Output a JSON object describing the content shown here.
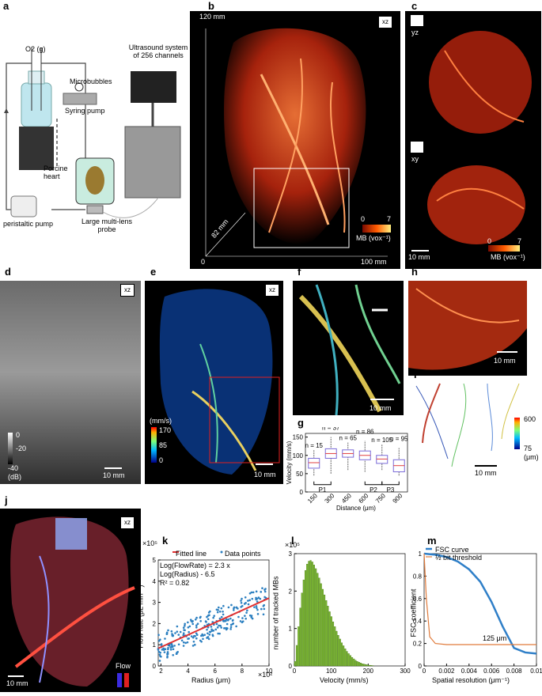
{
  "panels": {
    "a": {
      "label": "a",
      "o2": "O2 (g)",
      "microbubbles": "Microbubbles",
      "syringe": "Syring pump",
      "us": "Ultrasound system of 256 channels",
      "porcine": "Porcine heart",
      "peristaltic": "peristaltic pump",
      "probe": "Large multi-lens probe"
    },
    "b": {
      "label": "b",
      "y": "120 mm",
      "z": "82 mm",
      "x": "100 mm",
      "origin": "0",
      "view": "xz",
      "cbar_min": "0",
      "cbar_max": "7",
      "cbar_unit": "MB (vox⁻¹)"
    },
    "c": {
      "label": "c",
      "view1": "yz",
      "view2": "xy",
      "scale": "10 mm",
      "cbar_min": "0",
      "cbar_max": "7",
      "cbar_unit": "MB (vox⁻¹)"
    },
    "d": {
      "label": "d",
      "view": "xz",
      "c0": "0",
      "c1": "-20",
      "c2": "-40",
      "unit": "(dB)",
      "scale": "10 mm"
    },
    "e": {
      "label": "e",
      "view": "xz",
      "unit": "(mm/s)",
      "c0": "170",
      "c1": "85",
      "c2": "0",
      "scale": "10 mm"
    },
    "f": {
      "label": "f",
      "scale": "10 mm"
    },
    "g": {
      "label": "g",
      "ylabel": "Velocity (mm/s)",
      "xlabel": "Distance (μm)",
      "p1": "P1",
      "p2": "P2",
      "p3": "P3"
    },
    "h": {
      "label": "h",
      "scale": "10 mm"
    },
    "i": {
      "label": "i",
      "cmax": "600",
      "cmin": "75",
      "unit": "(μm)",
      "scale": "10 mm"
    },
    "j": {
      "label": "j",
      "view": "xz",
      "flow": "Flow",
      "scale": "10 mm"
    },
    "k": {
      "label": "k",
      "legend1": "Fitted line",
      "legend2": "Data points",
      "eq1": "Log(FlowRate) = 2.3 x",
      "eq2": "Log(Radius) - 6.5",
      "r2": "R² = 0.82",
      "ylabel": "Flow rate (μL min⁻¹)",
      "xlabel": "Radius (μm)",
      "yexp": "×10⁵",
      "xexp": "×10²"
    },
    "l": {
      "label": "l",
      "ylabel": "number of tracked MBs",
      "xlabel": "Velocity (mm/s)",
      "yexp": "×10⁵"
    },
    "m": {
      "label": "m",
      "legend1": "FSC curve",
      "legend2": "½ bit threshold",
      "ylabel": "FSC coefficient",
      "xlabel": "Spatial resolution (μm⁻¹)",
      "annot": "125 μm"
    }
  },
  "chart_data": [
    {
      "id": "g",
      "type": "box",
      "categories": [
        "150",
        "300",
        "450",
        "600",
        "750",
        "900"
      ],
      "n_labels": [
        "n = 15",
        "n = 37",
        "n = 65",
        "n = 86",
        "n = 105",
        "n = 95"
      ],
      "median": [
        80,
        105,
        105,
        100,
        90,
        72
      ],
      "q1": [
        65,
        92,
        95,
        88,
        78,
        55
      ],
      "q3": [
        92,
        118,
        115,
        112,
        100,
        88
      ],
      "wlo": [
        45,
        50,
        60,
        55,
        60,
        45
      ],
      "whi": [
        115,
        150,
        135,
        140,
        130,
        120
      ],
      "ylim": [
        0,
        160
      ],
      "yticks": [
        0,
        50,
        100,
        150
      ]
    },
    {
      "id": "k",
      "type": "scatter",
      "xlim": [
        1.8,
        10
      ],
      "ylim": [
        0,
        5
      ],
      "xticks": [
        2,
        4,
        6,
        8,
        10
      ],
      "yticks": [
        0,
        1,
        2,
        3,
        4,
        5
      ],
      "fit": {
        "x": [
          1.8,
          10
        ],
        "y": [
          0.83,
          3.2
        ]
      }
    },
    {
      "id": "l",
      "type": "bar",
      "xlim": [
        0,
        300
      ],
      "ylim": [
        0,
        3
      ],
      "xticks": [
        0,
        100,
        200,
        300
      ],
      "yticks": [
        0,
        1,
        2,
        3
      ],
      "values": [
        0.12,
        0.55,
        1.05,
        1.55,
        1.95,
        2.3,
        2.55,
        2.72,
        2.8,
        2.82,
        2.78,
        2.7,
        2.6,
        2.48,
        2.35,
        2.2,
        2.05,
        1.9,
        1.75,
        1.6,
        1.45,
        1.32,
        1.18,
        1.05,
        0.93,
        0.82,
        0.72,
        0.62,
        0.54,
        0.46,
        0.39,
        0.33,
        0.28,
        0.23,
        0.19,
        0.15,
        0.12,
        0.1,
        0.08,
        0.06,
        0.05,
        0.04,
        0.03,
        0.02,
        0.015,
        0.01
      ]
    },
    {
      "id": "m",
      "type": "line",
      "xlim": [
        0,
        0.01
      ],
      "ylim": [
        0,
        1
      ],
      "xticks": [
        0,
        0.002,
        0.004,
        0.006,
        0.008,
        0.01
      ],
      "yticks": [
        0,
        0.2,
        0.4,
        0.6,
        0.8,
        1
      ],
      "series": [
        {
          "name": "FSC curve",
          "x": [
            0,
            0.001,
            0.002,
            0.003,
            0.004,
            0.005,
            0.006,
            0.007,
            0.008,
            0.009,
            0.01
          ],
          "y": [
            1,
            0.99,
            0.97,
            0.93,
            0.86,
            0.75,
            0.57,
            0.35,
            0.16,
            0.12,
            0.11
          ]
        },
        {
          "name": "½ bit threshold",
          "x": [
            0,
            0.0002,
            0.0005,
            0.001,
            0.002,
            0.004,
            0.006,
            0.008,
            0.01
          ],
          "y": [
            1,
            0.6,
            0.26,
            0.2,
            0.19,
            0.19,
            0.19,
            0.19,
            0.19
          ]
        }
      ]
    }
  ]
}
